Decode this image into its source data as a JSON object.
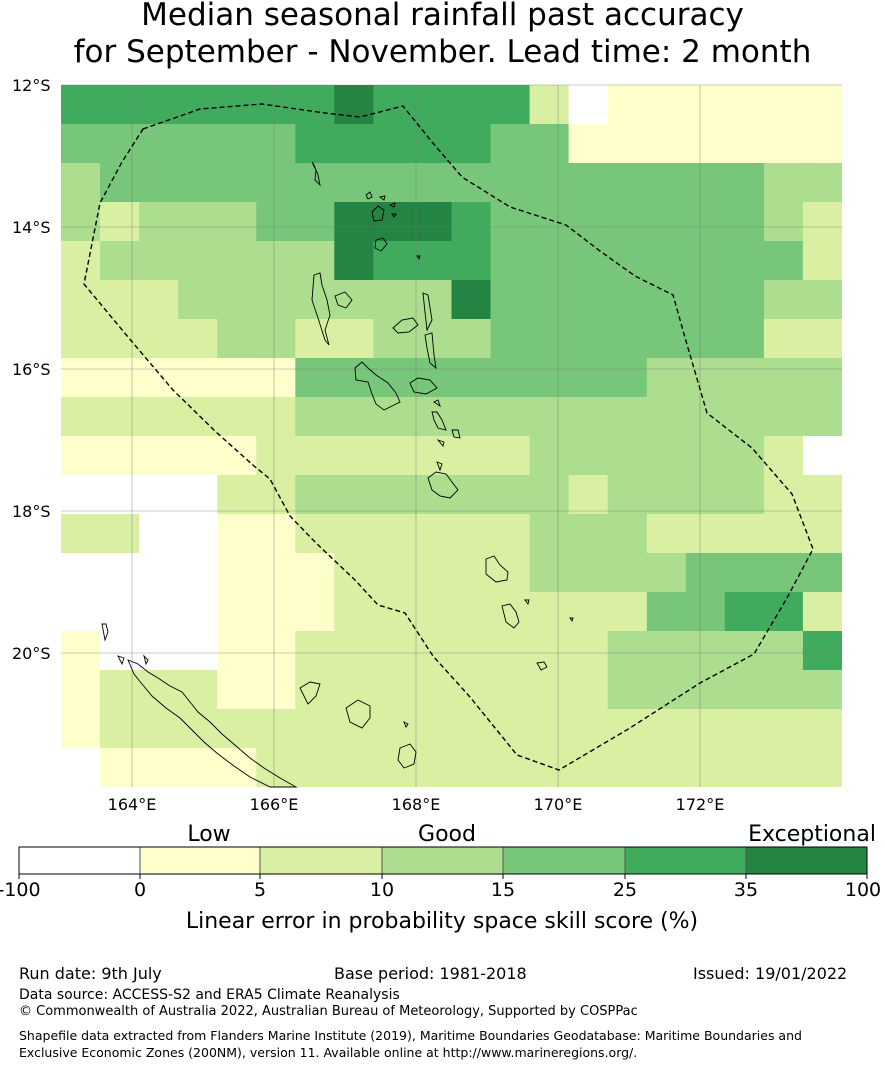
{
  "title_line1": "Median seasonal rainfall past accuracy",
  "title_line2": "for September - November. Lead time: 2 month",
  "map": {
    "lat_labels": [
      "12°S",
      "14°S",
      "16°S",
      "18°S",
      "20°S"
    ],
    "lon_labels": [
      "164°E",
      "166°E",
      "168°E",
      "170°E",
      "172°E"
    ]
  },
  "colorbar": {
    "category_labels": [
      "Low",
      "Good",
      "Exceptional"
    ],
    "tick_labels": [
      "-100",
      "0",
      "5",
      "10",
      "15",
      "25",
      "35",
      "100"
    ],
    "colors": [
      "#ffffff",
      "#ffffcc",
      "#d9f0a3",
      "#addd8e",
      "#78c679",
      "#41ab5d",
      "#238443"
    ],
    "label": "Linear error in probability space skill score (%)"
  },
  "footer": {
    "run_date": "Run date: 9th July",
    "base_period": "Base period: 1981-2018",
    "issued": "Issued: 19/01/2022",
    "data_source": "Data source: ACCESS-S2 and ERA5 Climate Reanalysis",
    "copyright": "© Commonwealth of Australia 2022, Australian Bureau of Meteorology, Supported by COSPPac",
    "shapefile_note": "Shapefile data extracted from Flanders Marine Institute (2019), Maritime Boundaries Geodatabase: Maritime Boundaries and Exclusive Economic Zones (200NM), version 11. Available online at http://www.marineregions.org/."
  }
}
